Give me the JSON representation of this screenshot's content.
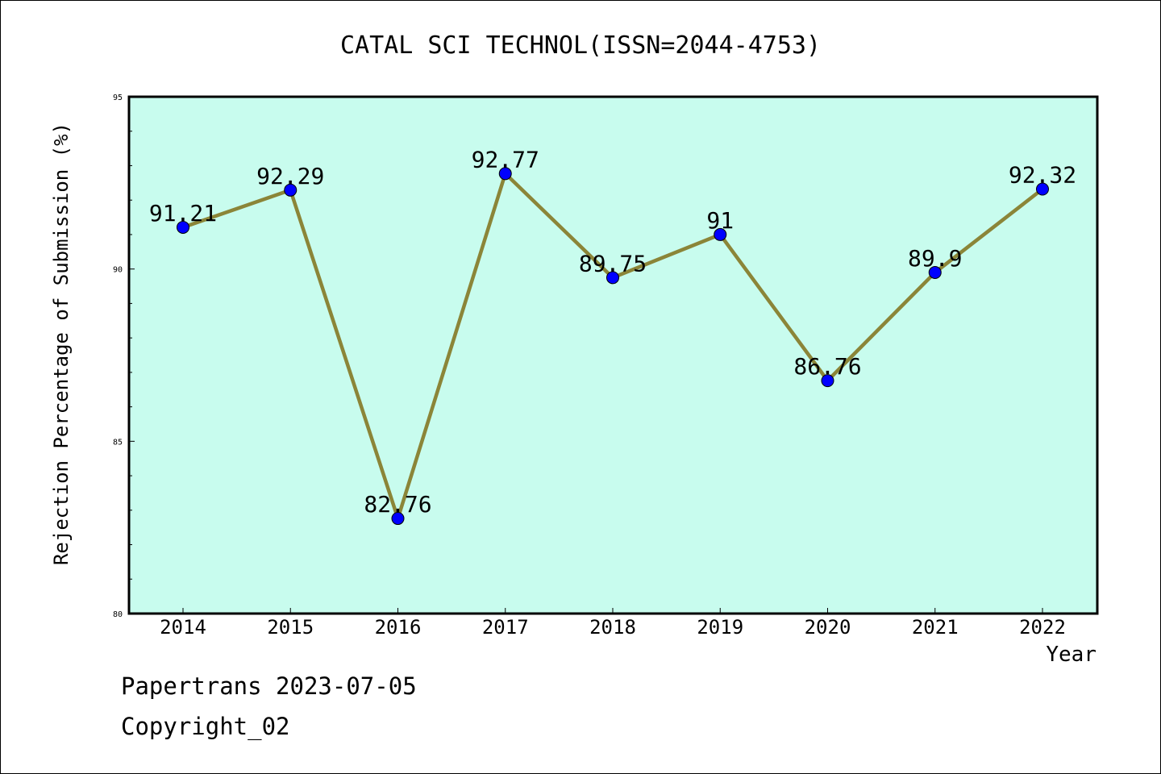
{
  "chart_data": {
    "type": "line",
    "title": "CATAL SCI TECHNOL(ISSN=2044-4753)",
    "xlabel": "Year",
    "ylabel": "Rejection Percentage of Submission (%)",
    "categories": [
      "2014",
      "2015",
      "2016",
      "2017",
      "2018",
      "2019",
      "2020",
      "2021",
      "2022"
    ],
    "values": [
      91.21,
      92.29,
      82.76,
      92.77,
      89.75,
      91,
      86.76,
      89.9,
      92.32
    ],
    "data_labels": [
      "91.21",
      "92.29",
      "82.76",
      "92.77",
      "89.75",
      "91",
      "86.76",
      "89.9",
      "92.32"
    ],
    "ylim": [
      80,
      95
    ],
    "y_major_ticks": [
      80,
      85,
      90,
      95
    ],
    "y_minor_step": 1,
    "grid": false,
    "colors": {
      "plot_background": "#c8fcee",
      "line": "#8b8538",
      "marker": "#0000ff"
    }
  },
  "footer": {
    "line1": "Papertrans 2023-07-05",
    "line2": "Copyright_02"
  }
}
